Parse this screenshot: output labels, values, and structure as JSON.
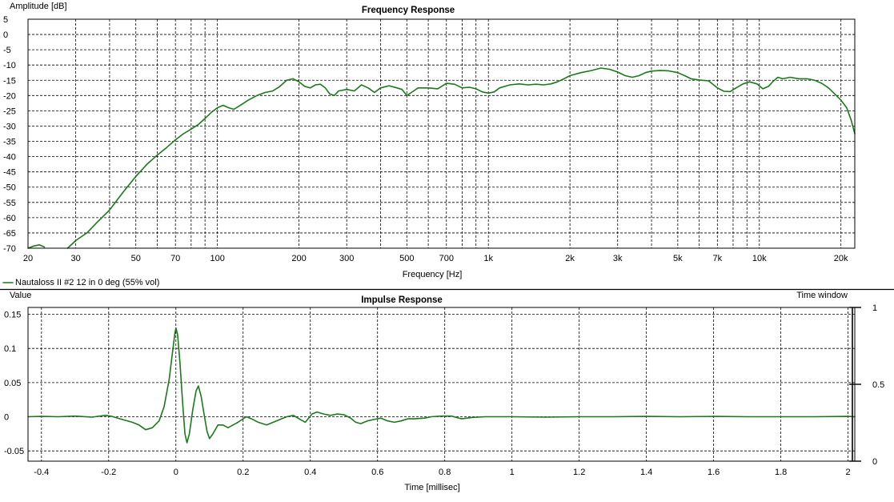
{
  "colors": {
    "curve": "#1a7a1a",
    "grid": "#000000",
    "background": "#ffffff"
  },
  "legend": {
    "label": "Nautaloss II #2 12 in 0 deg (55% vol)"
  },
  "chart_data": [
    {
      "type": "line",
      "title": "Frequency Response",
      "xlabel": "Frequency [Hz]",
      "ylabel": "Amplitude [dB]",
      "xscale": "log",
      "xlim": [
        20,
        22500
      ],
      "ylim": [
        -70,
        5
      ],
      "grid": true,
      "xticks": [
        {
          "v": 20,
          "t": "20"
        },
        {
          "v": 30,
          "t": "30"
        },
        {
          "v": 50,
          "t": "50"
        },
        {
          "v": 70,
          "t": "70"
        },
        {
          "v": 100,
          "t": "100"
        },
        {
          "v": 200,
          "t": "200"
        },
        {
          "v": 300,
          "t": "300"
        },
        {
          "v": 500,
          "t": "500"
        },
        {
          "v": 700,
          "t": "700"
        },
        {
          "v": 1000,
          "t": "1k"
        },
        {
          "v": 2000,
          "t": "2k"
        },
        {
          "v": 3000,
          "t": "3k"
        },
        {
          "v": 5000,
          "t": "5k"
        },
        {
          "v": 7000,
          "t": "7k"
        },
        {
          "v": 10000,
          "t": "10k"
        },
        {
          "v": 20000,
          "t": "20k"
        }
      ],
      "xgrid": [
        20,
        30,
        40,
        50,
        60,
        70,
        80,
        90,
        100,
        200,
        300,
        400,
        500,
        600,
        700,
        800,
        900,
        1000,
        2000,
        3000,
        4000,
        5000,
        6000,
        7000,
        8000,
        9000,
        10000,
        20000
      ],
      "yticks": [
        5,
        0,
        -5,
        -10,
        -15,
        -20,
        -25,
        -30,
        -35,
        -40,
        -45,
        -50,
        -55,
        -60,
        -65,
        -70
      ],
      "series": [
        {
          "name": "Nautaloss II #2 12 in 0 deg (55% vol)",
          "segments": [
            [
              [
                20,
                -70
              ],
              [
                21,
                -69.3
              ],
              [
                22,
                -68.9
              ],
              [
                23,
                -69.6
              ]
            ],
            [
              [
                28,
                -70
              ],
              [
                30,
                -67.5
              ],
              [
                33,
                -65
              ],
              [
                36,
                -61.5
              ],
              [
                40,
                -57.5
              ],
              [
                45,
                -51.5
              ],
              [
                50,
                -46.5
              ],
              [
                55,
                -42.5
              ],
              [
                60,
                -39.5
              ],
              [
                65,
                -37
              ],
              [
                70,
                -34.5
              ],
              [
                75,
                -32.5
              ],
              [
                80,
                -31
              ],
              [
                85,
                -29.5
              ],
              [
                90,
                -27.5
              ],
              [
                95,
                -25.5
              ],
              [
                100,
                -24
              ],
              [
                105,
                -23.2
              ],
              [
                110,
                -24
              ],
              [
                115,
                -24.5
              ],
              [
                120,
                -23.5
              ],
              [
                130,
                -21.5
              ],
              [
                140,
                -20
              ],
              [
                150,
                -19
              ],
              [
                160,
                -18.5
              ],
              [
                170,
                -17
              ],
              [
                180,
                -15
              ],
              [
                190,
                -14.5
              ],
              [
                200,
                -15.5
              ],
              [
                210,
                -17
              ],
              [
                220,
                -17.5
              ],
              [
                230,
                -16.5
              ],
              [
                240,
                -16.3
              ],
              [
                250,
                -17.5
              ],
              [
                260,
                -19.5
              ],
              [
                270,
                -20
              ],
              [
                280,
                -18.5
              ],
              [
                300,
                -18
              ],
              [
                320,
                -18.5
              ],
              [
                340,
                -16.5
              ],
              [
                360,
                -17.5
              ],
              [
                380,
                -19
              ],
              [
                400,
                -17.5
              ],
              [
                430,
                -16.8
              ],
              [
                460,
                -17.5
              ],
              [
                480,
                -18
              ],
              [
                500,
                -20
              ],
              [
                520,
                -19
              ],
              [
                550,
                -17.5
              ],
              [
                600,
                -17.5
              ],
              [
                650,
                -17.8
              ],
              [
                700,
                -16
              ],
              [
                750,
                -16.3
              ],
              [
                800,
                -17.5
              ],
              [
                850,
                -17.3
              ],
              [
                900,
                -17.8
              ],
              [
                950,
                -18.8
              ],
              [
                1000,
                -19.2
              ],
              [
                1050,
                -18.8
              ],
              [
                1100,
                -17.5
              ],
              [
                1200,
                -16.5
              ],
              [
                1300,
                -16.2
              ],
              [
                1400,
                -16.5
              ],
              [
                1500,
                -16.3
              ],
              [
                1600,
                -16.5
              ],
              [
                1700,
                -16.2
              ],
              [
                1800,
                -15.5
              ],
              [
                1900,
                -14.5
              ],
              [
                2000,
                -13.5
              ],
              [
                2200,
                -12.5
              ],
              [
                2400,
                -11.8
              ],
              [
                2600,
                -11
              ],
              [
                2800,
                -11.4
              ],
              [
                3000,
                -12.3
              ],
              [
                3200,
                -13.5
              ],
              [
                3400,
                -14
              ],
              [
                3600,
                -13.5
              ],
              [
                3800,
                -12.5
              ],
              [
                4000,
                -12
              ],
              [
                4300,
                -11.8
              ],
              [
                4600,
                -11.9
              ],
              [
                5000,
                -12.5
              ],
              [
                5300,
                -13.5
              ],
              [
                5600,
                -14.5
              ],
              [
                6000,
                -14.9
              ],
              [
                6500,
                -15.2
              ],
              [
                7000,
                -17.5
              ],
              [
                7400,
                -18.6
              ],
              [
                7800,
                -18.7
              ],
              [
                8200,
                -17.5
              ],
              [
                8700,
                -16.2
              ],
              [
                9200,
                -15.5
              ],
              [
                9800,
                -16.2
              ],
              [
                10300,
                -17.8
              ],
              [
                10800,
                -17
              ],
              [
                11200,
                -15.5
              ],
              [
                11700,
                -14
              ],
              [
                12200,
                -14.5
              ],
              [
                13000,
                -14
              ],
              [
                14000,
                -14.5
              ],
              [
                15000,
                -14.5
              ],
              [
                16000,
                -15
              ],
              [
                17000,
                -16
              ],
              [
                18000,
                -17.5
              ],
              [
                19000,
                -19.5
              ],
              [
                20000,
                -21.5
              ],
              [
                21000,
                -24
              ],
              [
                21800,
                -28
              ],
              [
                22500,
                -32.5
              ]
            ]
          ]
        }
      ]
    },
    {
      "type": "line",
      "title": "Impulse Response",
      "xlabel": "Time [millisec]",
      "ylabel": "Value",
      "y2label": "Time window",
      "xlim": [
        -0.44,
        2.02
      ],
      "ylim": [
        -0.065,
        0.16
      ],
      "y2lim": [
        0,
        1
      ],
      "grid": true,
      "xticks": [
        {
          "v": -0.4,
          "t": "-0.4"
        },
        {
          "v": -0.2,
          "t": "-0.2"
        },
        {
          "v": 0,
          "t": "0"
        },
        {
          "v": 0.2,
          "t": "0.2"
        },
        {
          "v": 0.4,
          "t": "0.4"
        },
        {
          "v": 0.6,
          "t": "0.6"
        },
        {
          "v": 0.8,
          "t": "0.8"
        },
        {
          "v": 1,
          "t": "1"
        },
        {
          "v": 1.2,
          "t": "1.2"
        },
        {
          "v": 1.4,
          "t": "1.4"
        },
        {
          "v": 1.6,
          "t": "1.6"
        },
        {
          "v": 1.8,
          "t": "1.8"
        },
        {
          "v": 2,
          "t": "2"
        }
      ],
      "yticks": [
        {
          "v": 0.15,
          "t": "0.15"
        },
        {
          "v": 0.1,
          "t": "0.1"
        },
        {
          "v": 0.05,
          "t": "0.05"
        },
        {
          "v": 0,
          "t": "0"
        },
        {
          "v": -0.05,
          "t": "-0.05"
        }
      ],
      "y2ticks": [
        {
          "v": 1,
          "t": "1"
        },
        {
          "v": 0.5,
          "t": "0.5"
        },
        {
          "v": 0,
          "t": "0"
        }
      ],
      "series": [
        {
          "name": "Nautaloss II #2 12 in 0 deg (55% vol)",
          "points": [
            [
              -0.44,
              0
            ],
            [
              -0.4,
              0.0005
            ],
            [
              -0.35,
              0
            ],
            [
              -0.3,
              0.001
            ],
            [
              -0.25,
              -0.0005
            ],
            [
              -0.21,
              0.002
            ],
            [
              -0.19,
              0.0005
            ],
            [
              -0.16,
              -0.004
            ],
            [
              -0.13,
              -0.008
            ],
            [
              -0.11,
              -0.012
            ],
            [
              -0.09,
              -0.019
            ],
            [
              -0.07,
              -0.016
            ],
            [
              -0.05,
              -0.006
            ],
            [
              -0.035,
              0.015
            ],
            [
              -0.02,
              0.055
            ],
            [
              -0.01,
              0.095
            ],
            [
              -0.003,
              0.122
            ],
            [
              0,
              0.13
            ],
            [
              0.005,
              0.12
            ],
            [
              0.012,
              0.08
            ],
            [
              0.02,
              0.02
            ],
            [
              0.027,
              -0.025
            ],
            [
              0.033,
              -0.038
            ],
            [
              0.04,
              -0.025
            ],
            [
              0.05,
              0.01
            ],
            [
              0.06,
              0.038
            ],
            [
              0.067,
              0.045
            ],
            [
              0.075,
              0.03
            ],
            [
              0.085,
              0
            ],
            [
              0.093,
              -0.022
            ],
            [
              0.1,
              -0.032
            ],
            [
              0.11,
              -0.025
            ],
            [
              0.125,
              -0.012
            ],
            [
              0.14,
              -0.012
            ],
            [
              0.155,
              -0.016
            ],
            [
              0.17,
              -0.012
            ],
            [
              0.185,
              -0.008
            ],
            [
              0.2,
              -0.003
            ],
            [
              0.21,
              0
            ],
            [
              0.225,
              -0.003
            ],
            [
              0.245,
              -0.008
            ],
            [
              0.27,
              -0.012
            ],
            [
              0.29,
              -0.008
            ],
            [
              0.31,
              -0.004
            ],
            [
              0.33,
              0
            ],
            [
              0.35,
              0.002
            ],
            [
              0.37,
              -0.004
            ],
            [
              0.385,
              -0.008
            ],
            [
              0.405,
              0.004
            ],
            [
              0.42,
              0.007
            ],
            [
              0.44,
              0.004
            ],
            [
              0.46,
              0.002
            ],
            [
              0.48,
              0.004
            ],
            [
              0.5,
              0.003
            ],
            [
              0.52,
              -0.002
            ],
            [
              0.535,
              -0.008
            ],
            [
              0.55,
              -0.01
            ],
            [
              0.57,
              -0.006
            ],
            [
              0.59,
              -0.004
            ],
            [
              0.61,
              -0.002
            ],
            [
              0.63,
              -0.006
            ],
            [
              0.65,
              -0.008
            ],
            [
              0.67,
              -0.006
            ],
            [
              0.69,
              -0.003
            ],
            [
              0.71,
              -0.003
            ],
            [
              0.74,
              -0.002
            ],
            [
              0.76,
              0
            ],
            [
              0.79,
              0.001
            ],
            [
              0.82,
              0.001
            ],
            [
              0.85,
              -0.003
            ],
            [
              0.88,
              -0.001
            ],
            [
              0.92,
              0
            ],
            [
              1,
              0
            ],
            [
              1.1,
              -0.0005
            ],
            [
              1.2,
              0
            ],
            [
              1.3,
              0
            ],
            [
              1.4,
              0.0005
            ],
            [
              1.5,
              0
            ],
            [
              1.6,
              0.0005
            ],
            [
              1.7,
              0
            ],
            [
              1.8,
              0
            ],
            [
              1.9,
              0
            ],
            [
              2,
              0.0005
            ],
            [
              2.02,
              0
            ]
          ]
        }
      ]
    }
  ]
}
